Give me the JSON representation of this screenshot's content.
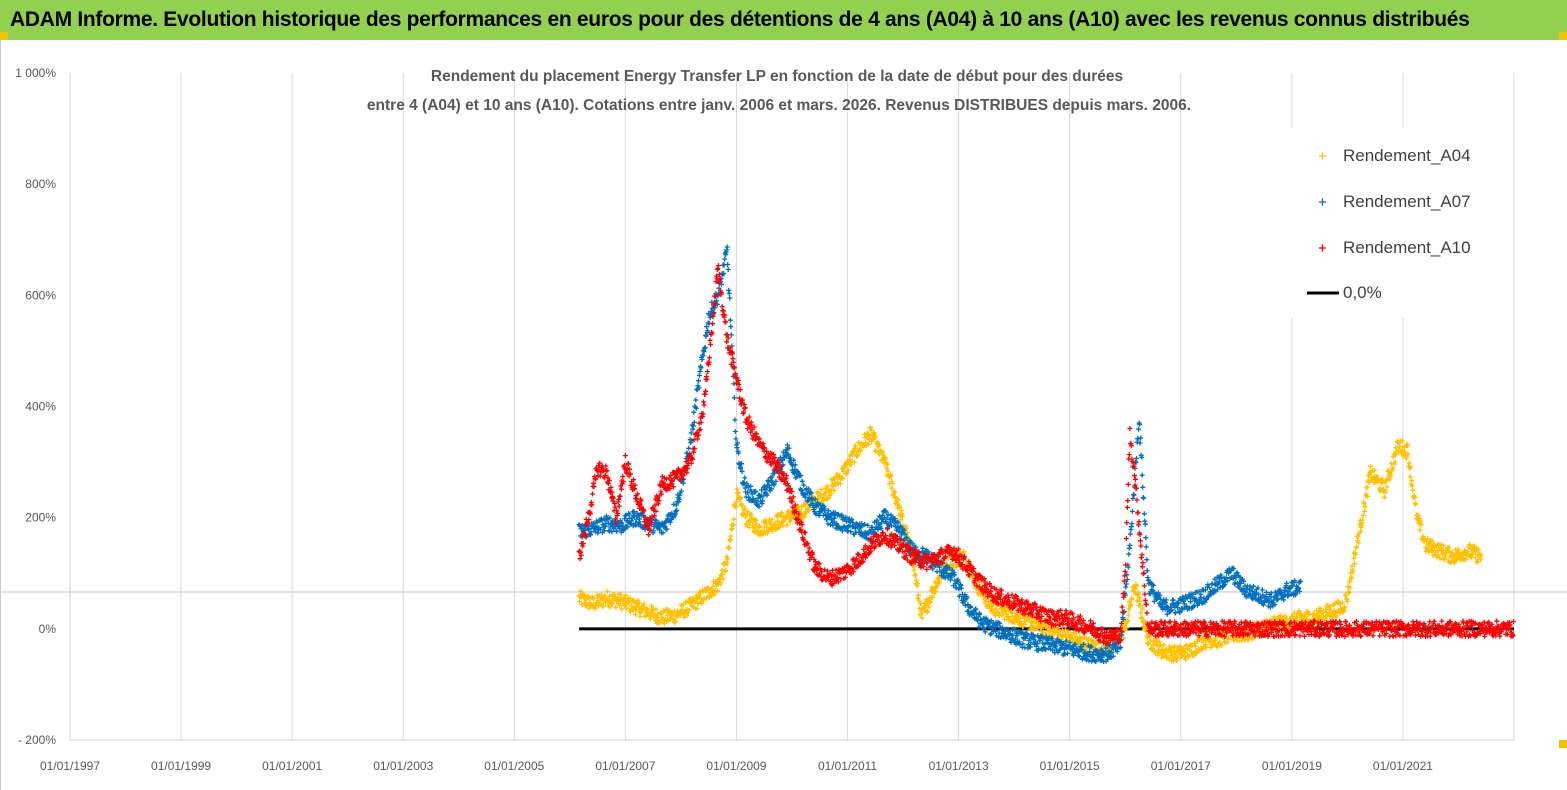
{
  "banner": {
    "title": "ADAM Informe. Evolution historique des performances en euros pour des détentions de 4 ans (A04) à 10 ans (A10) avec les revenus connus distribués"
  },
  "chart_data": {
    "type": "scatter",
    "title": [
      "Rendement du placement Energy Transfer LP en fonction de la date de début pour des durées",
      "entre 4 (A04) et 10 ans (A10). Cotations entre janv. 2006 et mars. 2026. Revenus DISTRIBUES depuis mars. 2006."
    ],
    "xlabel": "",
    "ylabel": "",
    "x_range": [
      "1997-01-01",
      "2023-01-01"
    ],
    "ylim": [
      -200,
      1000
    ],
    "y_unit": "%",
    "y_ticks": [
      -200,
      0,
      200,
      400,
      600,
      800,
      1000
    ],
    "y_tick_labels": [
      "- 200%",
      "0%",
      "200%",
      "400%",
      "600%",
      "800%",
      "1 000%"
    ],
    "x_tick_labels": [
      "01/01/1997",
      "01/01/1999",
      "01/01/2001",
      "01/01/2003",
      "01/01/2005",
      "01/01/2007",
      "01/01/2009",
      "01/01/2011",
      "01/01/2013",
      "01/01/2015",
      "01/01/2017",
      "01/01/2019",
      "01/01/2021"
    ],
    "grid": "vertical",
    "legend_position": "top-right",
    "colors": {
      "Rendement_A04": "#ffc000",
      "Rendement_A07": "#0070c0",
      "Rendement_A10": "#ff0000",
      "zero_line": "#000000"
    },
    "series": [
      {
        "name": "Rendement_A04",
        "marker": "+",
        "x": [
          "2006-03",
          "2006-06",
          "2006-09",
          "2006-12",
          "2007-03",
          "2007-06",
          "2007-09",
          "2007-12",
          "2008-03",
          "2008-06",
          "2008-09",
          "2008-11",
          "2009-01",
          "2009-03",
          "2009-06",
          "2009-09",
          "2009-12",
          "2010-03",
          "2010-06",
          "2010-09",
          "2010-12",
          "2011-03",
          "2011-06",
          "2011-09",
          "2011-12",
          "2012-03",
          "2012-05",
          "2012-08",
          "2012-11",
          "2013-02",
          "2013-05",
          "2013-08",
          "2013-11",
          "2014-02",
          "2014-05",
          "2014-08",
          "2014-11",
          "2015-02",
          "2015-05",
          "2015-08",
          "2015-11",
          "2016-01",
          "2016-03",
          "2016-06",
          "2016-09",
          "2016-12",
          "2017-03",
          "2017-06",
          "2017-09",
          "2017-12",
          "2018-03",
          "2018-06",
          "2018-09",
          "2018-12",
          "2019-03",
          "2019-06",
          "2019-09",
          "2019-12",
          "2020-01",
          "2020-03",
          "2020-06",
          "2020-09",
          "2020-12",
          "2021-02",
          "2021-04",
          "2021-06",
          "2021-09",
          "2021-12",
          "2022-03",
          "2022-06"
        ],
        "y": [
          55,
          45,
          55,
          50,
          40,
          30,
          20,
          25,
          40,
          60,
          80,
          120,
          240,
          200,
          180,
          190,
          200,
          210,
          230,
          250,
          280,
          320,
          350,
          300,
          220,
          130,
          20,
          80,
          120,
          130,
          80,
          40,
          30,
          20,
          10,
          0,
          -10,
          -20,
          -30,
          -35,
          -25,
          0,
          80,
          -20,
          -40,
          -45,
          -40,
          -20,
          -20,
          -10,
          -10,
          0,
          10,
          10,
          20,
          20,
          30,
          40,
          60,
          150,
          280,
          250,
          330,
          320,
          200,
          150,
          140,
          130,
          140,
          130
        ]
      },
      {
        "name": "Rendement_A07",
        "marker": "+",
        "x": [
          "2006-03",
          "2006-06",
          "2006-09",
          "2006-12",
          "2007-03",
          "2007-06",
          "2007-09",
          "2007-12",
          "2008-03",
          "2008-05",
          "2008-07",
          "2008-09",
          "2008-11",
          "2009-01",
          "2009-03",
          "2009-06",
          "2009-09",
          "2009-12",
          "2010-03",
          "2010-06",
          "2010-09",
          "2010-12",
          "2011-03",
          "2011-06",
          "2011-09",
          "2011-12",
          "2012-03",
          "2012-06",
          "2012-09",
          "2012-12",
          "2013-03",
          "2013-06",
          "2013-09",
          "2013-12",
          "2014-03",
          "2014-06",
          "2014-09",
          "2014-12",
          "2015-03",
          "2015-06",
          "2015-09",
          "2015-12",
          "2016-02",
          "2016-04",
          "2016-06",
          "2016-09",
          "2016-12",
          "2017-03",
          "2017-06",
          "2017-09",
          "2017-12",
          "2018-03",
          "2018-06",
          "2018-09",
          "2018-12",
          "2019-03"
        ],
        "y": [
          175,
          180,
          190,
          185,
          200,
          190,
          180,
          220,
          330,
          450,
          560,
          600,
          680,
          330,
          250,
          230,
          270,
          320,
          260,
          220,
          200,
          190,
          180,
          170,
          200,
          180,
          140,
          130,
          110,
          90,
          40,
          10,
          0,
          -10,
          -20,
          -25,
          -30,
          -35,
          -40,
          -45,
          -45,
          -30,
          150,
          380,
          80,
          40,
          40,
          50,
          60,
          80,
          100,
          70,
          60,
          50,
          70,
          75
        ]
      },
      {
        "name": "Rendement_A10",
        "marker": "+",
        "x": [
          "2006-03",
          "2006-05",
          "2006-07",
          "2006-09",
          "2006-11",
          "2007-01",
          "2007-03",
          "2007-06",
          "2007-09",
          "2007-12",
          "2008-03",
          "2008-06",
          "2008-09",
          "2008-11",
          "2009-01",
          "2009-03",
          "2009-06",
          "2009-09",
          "2009-12",
          "2010-03",
          "2010-06",
          "2010-09",
          "2010-12",
          "2011-03",
          "2011-06",
          "2011-09",
          "2011-12",
          "2012-03",
          "2012-06",
          "2012-09",
          "2012-12",
          "2013-03",
          "2013-06",
          "2013-09",
          "2013-12",
          "2014-03",
          "2014-06",
          "2014-09",
          "2014-12",
          "2015-03",
          "2015-06",
          "2015-09",
          "2015-12",
          "2016-01",
          "2016-02",
          "2016-03",
          "2016-06",
          "2017-01",
          "2018-01",
          "2019-01",
          "2020-01",
          "2021-01",
          "2022-01",
          "2023-01"
        ],
        "y": [
          130,
          200,
          290,
          280,
          200,
          300,
          250,
          180,
          260,
          270,
          300,
          400,
          650,
          520,
          450,
          380,
          330,
          300,
          260,
          180,
          110,
          90,
          100,
          120,
          150,
          170,
          150,
          130,
          120,
          130,
          140,
          110,
          80,
          60,
          50,
          40,
          30,
          20,
          20,
          10,
          0,
          -15,
          -10,
          100,
          350,
          280,
          0,
          0,
          0,
          0,
          0,
          0,
          0,
          0
        ]
      },
      {
        "name": "0,0%",
        "marker": "line",
        "x": [
          "2006-03",
          "2023-01"
        ],
        "y": [
          0,
          0
        ]
      }
    ]
  }
}
